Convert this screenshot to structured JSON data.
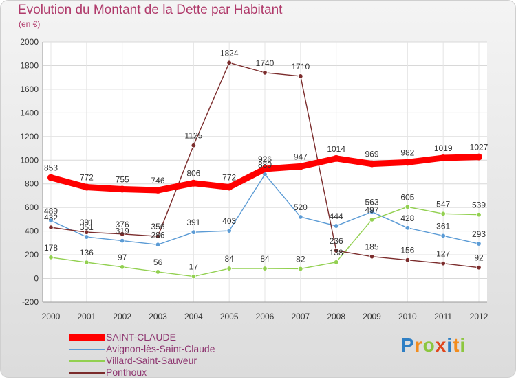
{
  "header": {
    "title": "Evolution du Montant de la Dette par Habitant",
    "subtitle": "(en €)"
  },
  "logo": {
    "text": "Proxiti",
    "colors": [
      "#2e7fc4",
      "#f28c1d",
      "#8cc63f",
      "#e0461c",
      "#2e7fc4",
      "#f28c1d",
      "#8cc63f"
    ]
  },
  "chart_data": {
    "type": "line",
    "title": "Evolution du Montant de la Dette par Habitant",
    "subtitle": "(en €)",
    "xlabel": "",
    "ylabel": "",
    "ylim": [
      -200,
      2000
    ],
    "y_ticks": [
      -200,
      0,
      200,
      400,
      600,
      800,
      1000,
      1200,
      1400,
      1600,
      1800,
      2000
    ],
    "grid": true,
    "legend_position": "bottom-left",
    "x": [
      2000,
      2001,
      2002,
      2003,
      2004,
      2005,
      2006,
      2007,
      2008,
      2009,
      2010,
      2011,
      2012
    ],
    "series": [
      {
        "name": "SAINT-CLAUDE",
        "color": "#ff0000",
        "values": [
          853,
          772,
          755,
          746,
          806,
          772,
          926,
          947,
          1014,
          969,
          982,
          1019,
          1027
        ],
        "labels": [
          "853",
          "772",
          "755",
          "746",
          "806",
          "772",
          "926",
          "947",
          "1014",
          "969",
          "982",
          "1019",
          "1027"
        ]
      },
      {
        "name": "Avignon-lès-Saint-Claude",
        "color": "#5b9bd5",
        "values": [
          489,
          351,
          319,
          286,
          391,
          403,
          880,
          520,
          444,
          563,
          428,
          361,
          293
        ],
        "labels": [
          "489",
          "351",
          "319",
          "286",
          "391",
          "403",
          "880",
          "520",
          "444",
          "563",
          "428",
          "361",
          "293"
        ]
      },
      {
        "name": "Villard-Saint-Sauveur",
        "color": "#92d050",
        "values": [
          178,
          136,
          97,
          56,
          17,
          84,
          84,
          82,
          138,
          497,
          605,
          547,
          539
        ],
        "labels": [
          "178",
          "136",
          "97",
          "56",
          "17",
          "84",
          "84",
          "82",
          "138",
          "497",
          "605",
          "547",
          "539"
        ]
      },
      {
        "name": "Ponthoux",
        "color": "#7b2c2c",
        "values": [
          432,
          391,
          376,
          356,
          1125,
          1824,
          1740,
          1710,
          236,
          185,
          156,
          127,
          92
        ],
        "labels": [
          "432",
          "391",
          "376",
          "356",
          "1125",
          "1824",
          "1740",
          "1710",
          "236",
          "185",
          "156",
          "127",
          "92"
        ]
      }
    ]
  }
}
